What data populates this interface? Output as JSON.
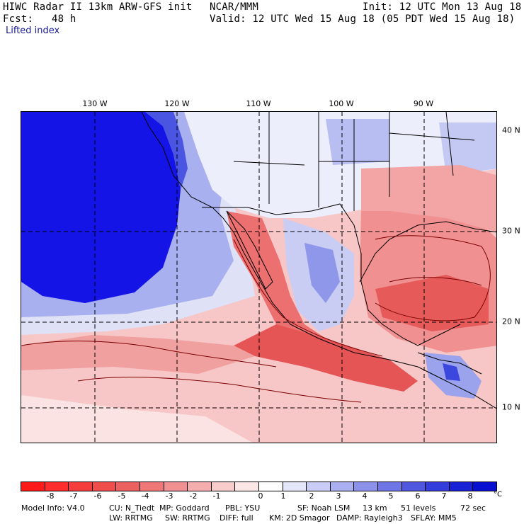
{
  "header": {
    "model_title": "HIWC Radar II 13km ARW-GFS init",
    "source": "NCAR/MMM",
    "init": "Init: 12 UTC Mon 13 Aug 18",
    "forecast": "Fcst:   48 h",
    "valid": "Valid: 12 UTC Wed 15 Aug 18 (05 PDT Wed 15 Aug 18)",
    "field": "Lifted index"
  },
  "map": {
    "longitude_labels": [
      "130 W",
      "120 W",
      "110 W",
      "100 W",
      "90 W"
    ],
    "latitude_labels": [
      "40 N",
      "30 N",
      "20 N",
      "10 N"
    ],
    "colors": {
      "strong_stable": "#1414e6",
      "stable": "#6a78e8",
      "slightly_stable": "#c8cdf2",
      "neutral": "#ffffff",
      "slightly_unstable": "#f7c6c6",
      "unstable": "#f08080",
      "strong_unstable": "#e84848",
      "contour": "#7a0000",
      "borders": "#000000"
    }
  },
  "colorbar": {
    "ticks": [
      "-8",
      "-7",
      "-6",
      "-5",
      "-4",
      "-3",
      "-2",
      "-1",
      "0",
      "1",
      "2",
      "3",
      "4",
      "5",
      "6",
      "7",
      "8"
    ],
    "unit": "°C",
    "colors": [
      "#ff1a1a",
      "#ff2e2e",
      "#f53d3d",
      "#f04d4d",
      "#ed6060",
      "#f07777",
      "#f29191",
      "#f5adad",
      "#f9cccc",
      "#fce6e6",
      "#ffffff",
      "#e4e6fa",
      "#c9ccf4",
      "#aab0ef",
      "#8c92ea",
      "#6e76e5",
      "#5058e0",
      "#333ddb",
      "#1a22d6",
      "#0a10d0"
    ]
  },
  "footer": {
    "line1": [
      "Model Info: V4.0",
      "CU: N_Tiedt",
      "MP: Goddard",
      "PBL: YSU",
      "SF: Noah LSM",
      "13 km",
      "51 levels",
      "72 sec"
    ],
    "line2": [
      "LW: RRTMG",
      "SW: RRTMG",
      "DIFF: full",
      "KM: 2D Smagor",
      "DAMP: Rayleigh3",
      "SFLAY: MM5"
    ]
  }
}
